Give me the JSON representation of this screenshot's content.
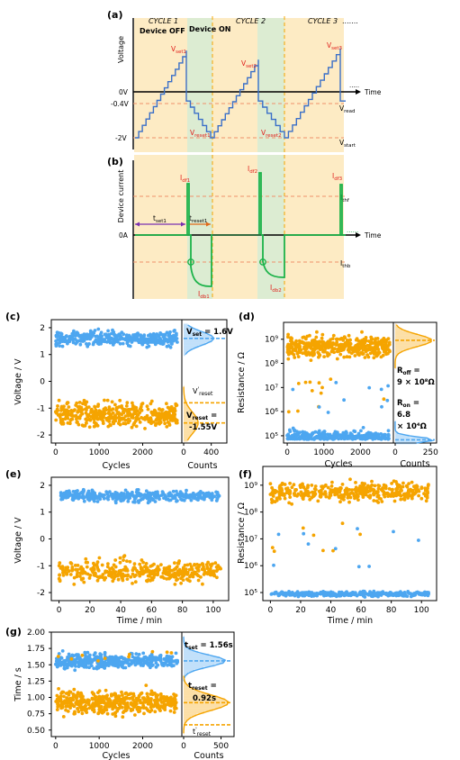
{
  "colors": {
    "blue": "#4da6f0",
    "orange": "#f5a400",
    "green": "#1db34a",
    "stair": "#3a6fc8",
    "dash": "#f0906a",
    "bg_orange": "#fdebc4",
    "bg_green": "#dcecd2",
    "set_red": "#e0201c"
  },
  "panel_a": {
    "letter": "(a)",
    "cycles": [
      "CYCLE 1",
      "CYCLE 2",
      "CYCLE 3"
    ],
    "dots": ".......",
    "ylabel": "Voltage",
    "device_off": "Device OFF",
    "device_on": "Device ON",
    "v0": "0V",
    "vread_val": "-0.4V",
    "vstart_val": "-2V",
    "time": "Time",
    "vread": "Vread",
    "vstart": "Vstart",
    "set_labels": [
      "Vset1",
      "Vset2",
      "Vset3"
    ],
    "reset_labels": [
      "Vreset1",
      "Vreset2"
    ]
  },
  "panel_b": {
    "letter": "(b)",
    "ylabel": "Device current",
    "zero": "0A",
    "time": "Time",
    "idf": [
      "Idf1",
      "Idf2",
      "Idf3"
    ],
    "idb": [
      "Idb1",
      "Idb2"
    ],
    "ithf": "Ithf",
    "ithb": "Ithb",
    "tset": "tset1",
    "treset": "treset1",
    "dots": "......"
  },
  "panel_c": {
    "letter": "(c)",
    "ylabel": "Voltage / V",
    "xlabel": "Cycles",
    "counts": "Counts",
    "yticks": [
      "2",
      "1",
      "0",
      "-1",
      "-2"
    ],
    "xticks": [
      "0",
      "1000",
      "2000"
    ],
    "hticks": [
      "0",
      "400"
    ],
    "vset": "Vset = 1.6V",
    "vreset_prime": "V'reset",
    "vreset": "Vreset =",
    "vreset_val": "-1.55V"
  },
  "panel_d": {
    "letter": "(d)",
    "ylabel": "Resistance / Ω",
    "xlabel": "Cycles",
    "counts": "Counts",
    "yticks": [
      "10⁹",
      "10⁸",
      "10⁷",
      "10⁶",
      "10⁵"
    ],
    "xticks": [
      "0",
      "1000",
      "2000"
    ],
    "hticks": [
      "0",
      "250"
    ],
    "roff_l1": "Roff =",
    "roff_l2": "9 × 10⁸Ω",
    "ron_l1": "Ron =",
    "ron_l2": "6.8",
    "ron_l3": "× 10⁴Ω"
  },
  "panel_e": {
    "letter": "(e)",
    "ylabel": "Voltage / V",
    "xlabel": "Time / min",
    "yticks": [
      "2",
      "1",
      "0",
      "-1",
      "-2"
    ],
    "xticks": [
      "0",
      "20",
      "40",
      "60",
      "80",
      "100"
    ]
  },
  "panel_f": {
    "letter": "(f)",
    "ylabel": "Resistance / Ω",
    "xlabel": "Time / min",
    "yticks": [
      "10⁹",
      "10⁸",
      "10⁷",
      "10⁶",
      "10⁵"
    ],
    "xticks": [
      "0",
      "20",
      "40",
      "60",
      "80",
      "100"
    ]
  },
  "panel_g": {
    "letter": "(g)",
    "ylabel": "Time / s",
    "xlabel": "Cycles",
    "counts": "Counts",
    "yticks": [
      "2.00",
      "1.75",
      "1.50",
      "1.25",
      "1.00",
      "0.75",
      "0.50"
    ],
    "xticks": [
      "0",
      "1000",
      "2000"
    ],
    "hticks": [
      "0",
      "500"
    ],
    "tset": "tset = 1.56s",
    "treset_l1": "treset =",
    "treset_l2": "0.92s",
    "treset_prime": "t'reset"
  },
  "chart_data": [
    {
      "type": "scatter",
      "panel": "c",
      "xlabel": "Cycles",
      "ylabel": "Voltage / V",
      "xlim": [
        -100,
        2900
      ],
      "ylim": [
        -2.3,
        2.3
      ],
      "series": [
        {
          "name": "Vset",
          "y_center": 1.6,
          "y_spread": [
            1.1,
            2.2
          ]
        },
        {
          "name": "Vreset",
          "y_center": -1.55,
          "y_spread": [
            -2.1,
            -0.2
          ]
        }
      ],
      "annotations": {
        "Vset": 1.6,
        "Vreset": -1.55
      }
    },
    {
      "type": "scatter",
      "panel": "d",
      "xlabel": "Cycles",
      "ylabel": "Resistance / Ω",
      "yscale": "log",
      "xlim": [
        -100,
        2900
      ],
      "ylim": [
        50000,
        5000000000
      ],
      "series": [
        {
          "name": "Roff",
          "y_center": 900000000,
          "y_spread": [
            10000000,
            2000000000
          ]
        },
        {
          "name": "Ron",
          "y_center": 68000,
          "y_spread": [
            50000,
            300000
          ]
        }
      ]
    },
    {
      "type": "scatter",
      "panel": "e",
      "xlabel": "Time / min",
      "ylabel": "Voltage / V",
      "xlim": [
        -5,
        110
      ],
      "ylim": [
        -2.3,
        2.3
      ]
    },
    {
      "type": "scatter",
      "panel": "f",
      "xlabel": "Time / min",
      "ylabel": "Resistance / Ω",
      "yscale": "log",
      "xlim": [
        -5,
        110
      ],
      "ylim": [
        50000,
        5000000000
      ]
    },
    {
      "type": "scatter",
      "panel": "g",
      "xlabel": "Cycles",
      "ylabel": "Time / s",
      "xlim": [
        -100,
        2900
      ],
      "ylim": [
        0.4,
        2.0
      ],
      "series": [
        {
          "name": "tset",
          "y_center": 1.56
        },
        {
          "name": "treset",
          "y_center": 0.92
        }
      ],
      "annotations": {
        "tset": 1.56,
        "treset": 0.92
      }
    }
  ]
}
